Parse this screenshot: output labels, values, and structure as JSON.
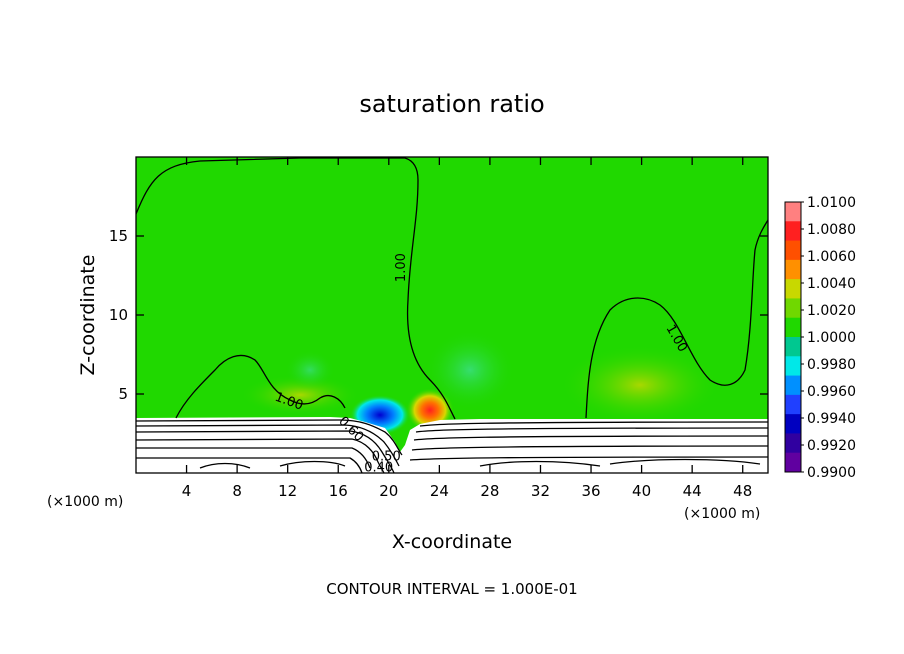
{
  "chart_data": {
    "type": "contour",
    "title": "saturation ratio",
    "xlabel": "X-coordinate",
    "ylabel": "Z-coordinate",
    "x_unit_left": "(×1000 m)",
    "x_unit_right": "(×1000 m)",
    "footer": "CONTOUR INTERVAL = 1.000E-01",
    "xlim": [
      0,
      50
    ],
    "ylim": [
      0,
      20
    ],
    "x_ticks": [
      4,
      8,
      12,
      16,
      20,
      24,
      28,
      32,
      36,
      40,
      44,
      48
    ],
    "y_ticks": [
      5,
      10,
      15
    ],
    "contour_labels": [
      {
        "text": "1.00",
        "x": 21.3,
        "y": 13.0,
        "rot": -90
      },
      {
        "text": "1.00",
        "x": 42.5,
        "y": 8.4,
        "rot": 60
      },
      {
        "text": "1.00",
        "x": 12.0,
        "y": 4.3,
        "rot": 20
      },
      {
        "text": "0.60",
        "x": 16.8,
        "y": 2.6,
        "rot": 45
      },
      {
        "text": "0.50",
        "x": 19.8,
        "y": 0.8,
        "rot": 0
      },
      {
        "text": "0.40",
        "x": 19.2,
        "y": 0.1,
        "rot": 0
      }
    ],
    "colorbar": {
      "labels": [
        "1.0100",
        "1.0080",
        "1.0060",
        "1.0040",
        "1.0020",
        "1.0000",
        "0.9980",
        "0.9960",
        "0.9940",
        "0.9920",
        "0.9900"
      ],
      "colors": [
        "#ff8080",
        "#ff2020",
        "#ff5000",
        "#ff9000",
        "#c8d800",
        "#70d800",
        "#20d800",
        "#00c890",
        "#00e8e8",
        "#0090ff",
        "#2040ff",
        "#0000c0",
        "#3000a0",
        "#6000a0"
      ]
    },
    "field_colors": {
      "background": "#20d800",
      "land": "#ffffff"
    }
  }
}
